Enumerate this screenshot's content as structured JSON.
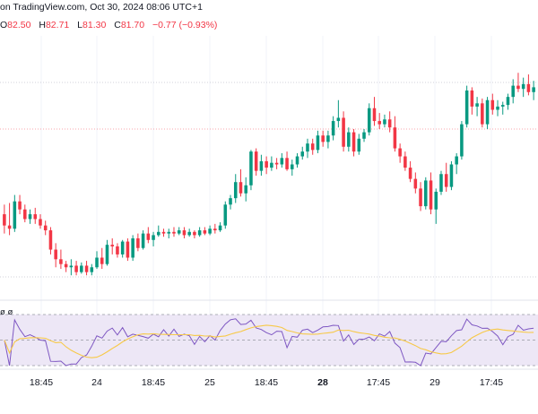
{
  "header": {
    "source": "on TradingView.com, Oct 30, 2024 08:06 UTC+1"
  },
  "ohlc": [
    {
      "key": "O",
      "value": "82.50"
    },
    {
      "key": "H",
      "value": "82.71"
    },
    {
      "key": "L",
      "value": "81.30"
    },
    {
      "key": "C",
      "value": "81.70"
    },
    {
      "key": "",
      "value": "−0.77 (−0.93%)"
    }
  ],
  "indicator": {
    "label": "ø  ø"
  },
  "colors": {
    "up": "#089981",
    "down": "#f23645",
    "rsi_line": "#7e57c2",
    "rsi_ma": "#f7c948",
    "rsi_band": "#ede7f6",
    "grid": "#f0f3fa"
  },
  "chart_data": {
    "type": "candlestick",
    "x_ticks": [
      "18:45",
      "24",
      "18:45",
      "25",
      "18:45",
      "28",
      "17:45",
      "29",
      "17:45"
    ],
    "x_tick_bold": [
      false,
      false,
      false,
      false,
      false,
      true,
      false,
      false,
      false
    ],
    "y_range": [
      81.55,
      83.1
    ],
    "reference_lines": [
      82.81,
      82.52,
      81.6
    ],
    "candles": [
      [
        81.99,
        82.05,
        81.87,
        81.92
      ],
      [
        81.92,
        82.06,
        81.86,
        81.9
      ],
      [
        81.9,
        82.11,
        81.88,
        82.07
      ],
      [
        82.07,
        82.11,
        81.99,
        82.02
      ],
      [
        82.02,
        82.05,
        81.94,
        81.96
      ],
      [
        81.96,
        82.02,
        81.93,
        81.99
      ],
      [
        81.99,
        82.03,
        81.93,
        81.96
      ],
      [
        81.96,
        81.99,
        81.9,
        81.92
      ],
      [
        81.92,
        81.95,
        81.86,
        81.89
      ],
      [
        81.89,
        81.91,
        81.74,
        81.77
      ],
      [
        81.77,
        81.81,
        81.66,
        81.71
      ],
      [
        81.71,
        81.77,
        81.65,
        81.68
      ],
      [
        81.68,
        81.7,
        81.63,
        81.66
      ],
      [
        81.66,
        81.71,
        81.61,
        81.67
      ],
      [
        81.67,
        81.7,
        81.61,
        81.63
      ],
      [
        81.63,
        81.69,
        81.62,
        81.67
      ],
      [
        81.67,
        81.7,
        81.61,
        81.63
      ],
      [
        81.63,
        81.68,
        81.61,
        81.66
      ],
      [
        81.66,
        81.76,
        81.65,
        81.72
      ],
      [
        81.72,
        81.78,
        81.65,
        81.68
      ],
      [
        81.68,
        81.83,
        81.67,
        81.8
      ],
      [
        81.8,
        81.84,
        81.74,
        81.79
      ],
      [
        81.79,
        81.81,
        81.72,
        81.74
      ],
      [
        81.74,
        81.83,
        81.72,
        81.82
      ],
      [
        81.82,
        81.84,
        81.7,
        81.72
      ],
      [
        81.72,
        81.86,
        81.7,
        81.84
      ],
      [
        81.84,
        81.87,
        81.76,
        81.78
      ],
      [
        81.78,
        81.89,
        81.77,
        81.87
      ],
      [
        81.87,
        81.91,
        81.81,
        81.83
      ],
      [
        81.83,
        81.88,
        81.79,
        81.86
      ],
      [
        81.86,
        81.92,
        81.85,
        81.88
      ],
      [
        81.88,
        81.9,
        81.85,
        81.87
      ],
      [
        81.87,
        81.9,
        81.84,
        81.88
      ],
      [
        81.88,
        81.91,
        81.85,
        81.87
      ],
      [
        81.87,
        81.91,
        81.86,
        81.89
      ],
      [
        81.89,
        81.91,
        81.84,
        81.86
      ],
      [
        81.86,
        81.9,
        81.85,
        81.88
      ],
      [
        81.88,
        81.89,
        81.84,
        81.86
      ],
      [
        81.86,
        81.91,
        81.85,
        81.89
      ],
      [
        81.89,
        81.91,
        81.86,
        81.87
      ],
      [
        81.87,
        81.92,
        81.86,
        81.9
      ],
      [
        81.9,
        81.93,
        81.87,
        81.89
      ],
      [
        81.89,
        81.94,
        81.88,
        81.92
      ],
      [
        81.92,
        82.07,
        81.9,
        82.05
      ],
      [
        82.05,
        82.11,
        82.02,
        82.09
      ],
      [
        82.09,
        82.24,
        82.06,
        82.19
      ],
      [
        82.19,
        82.27,
        82.1,
        82.12
      ],
      [
        82.12,
        82.22,
        82.07,
        82.17
      ],
      [
        82.17,
        82.39,
        82.14,
        82.38
      ],
      [
        82.38,
        82.4,
        82.23,
        82.26
      ],
      [
        82.26,
        82.36,
        82.23,
        82.32
      ],
      [
        82.32,
        82.35,
        82.24,
        82.28
      ],
      [
        82.28,
        82.35,
        82.26,
        82.31
      ],
      [
        82.31,
        82.34,
        82.27,
        82.3
      ],
      [
        82.3,
        82.37,
        82.28,
        82.34
      ],
      [
        82.34,
        82.38,
        82.26,
        82.27
      ],
      [
        82.27,
        82.33,
        82.23,
        82.3
      ],
      [
        82.3,
        82.37,
        82.28,
        82.35
      ],
      [
        82.35,
        82.41,
        82.33,
        82.38
      ],
      [
        82.38,
        82.46,
        82.34,
        82.43
      ],
      [
        82.43,
        82.46,
        82.36,
        82.39
      ],
      [
        82.39,
        82.51,
        82.37,
        82.48
      ],
      [
        82.48,
        82.51,
        82.41,
        82.44
      ],
      [
        82.44,
        82.51,
        82.4,
        82.48
      ],
      [
        82.48,
        82.6,
        82.45,
        82.57
      ],
      [
        82.57,
        82.7,
        82.53,
        82.59
      ],
      [
        82.59,
        82.63,
        82.38,
        82.41
      ],
      [
        82.41,
        82.53,
        82.38,
        82.5
      ],
      [
        82.5,
        82.52,
        82.35,
        82.38
      ],
      [
        82.38,
        82.49,
        82.36,
        82.46
      ],
      [
        82.46,
        82.52,
        82.44,
        82.5
      ],
      [
        82.5,
        82.68,
        82.48,
        82.65
      ],
      [
        82.65,
        82.72,
        82.54,
        82.57
      ],
      [
        82.57,
        82.62,
        82.52,
        82.55
      ],
      [
        82.55,
        82.61,
        82.53,
        82.58
      ],
      [
        82.58,
        82.63,
        82.5,
        82.53
      ],
      [
        82.53,
        82.6,
        82.38,
        82.4
      ],
      [
        82.4,
        82.43,
        82.31,
        82.35
      ],
      [
        82.35,
        82.38,
        82.26,
        82.28
      ],
      [
        82.28,
        82.32,
        82.19,
        82.21
      ],
      [
        82.21,
        82.25,
        82.12,
        82.15
      ],
      [
        82.15,
        82.19,
        82.01,
        82.04
      ],
      [
        82.04,
        82.22,
        82.02,
        82.2
      ],
      [
        82.2,
        82.25,
        81.99,
        82.02
      ],
      [
        82.02,
        82.15,
        81.93,
        82.13
      ],
      [
        82.13,
        82.26,
        82.11,
        82.24
      ],
      [
        82.24,
        82.31,
        82.13,
        82.16
      ],
      [
        82.16,
        82.32,
        82.14,
        82.3
      ],
      [
        82.3,
        82.37,
        82.24,
        82.35
      ],
      [
        82.35,
        82.57,
        82.33,
        82.55
      ],
      [
        82.55,
        82.79,
        82.53,
        82.76
      ],
      [
        82.76,
        82.78,
        82.61,
        82.66
      ],
      [
        82.66,
        82.72,
        82.6,
        82.68
      ],
      [
        82.68,
        82.71,
        82.53,
        82.55
      ],
      [
        82.55,
        82.72,
        82.52,
        82.7
      ],
      [
        82.7,
        82.74,
        82.61,
        82.64
      ],
      [
        82.64,
        82.7,
        82.6,
        82.66
      ],
      [
        82.66,
        82.69,
        82.61,
        82.67
      ],
      [
        82.67,
        82.74,
        82.64,
        82.72
      ],
      [
        82.72,
        82.83,
        82.68,
        82.79
      ],
      [
        82.79,
        82.87,
        82.75,
        82.77
      ],
      [
        82.77,
        82.84,
        82.72,
        82.8
      ],
      [
        82.8,
        82.86,
        82.73,
        82.75
      ],
      [
        82.75,
        82.82,
        82.7,
        82.78
      ]
    ]
  }
}
